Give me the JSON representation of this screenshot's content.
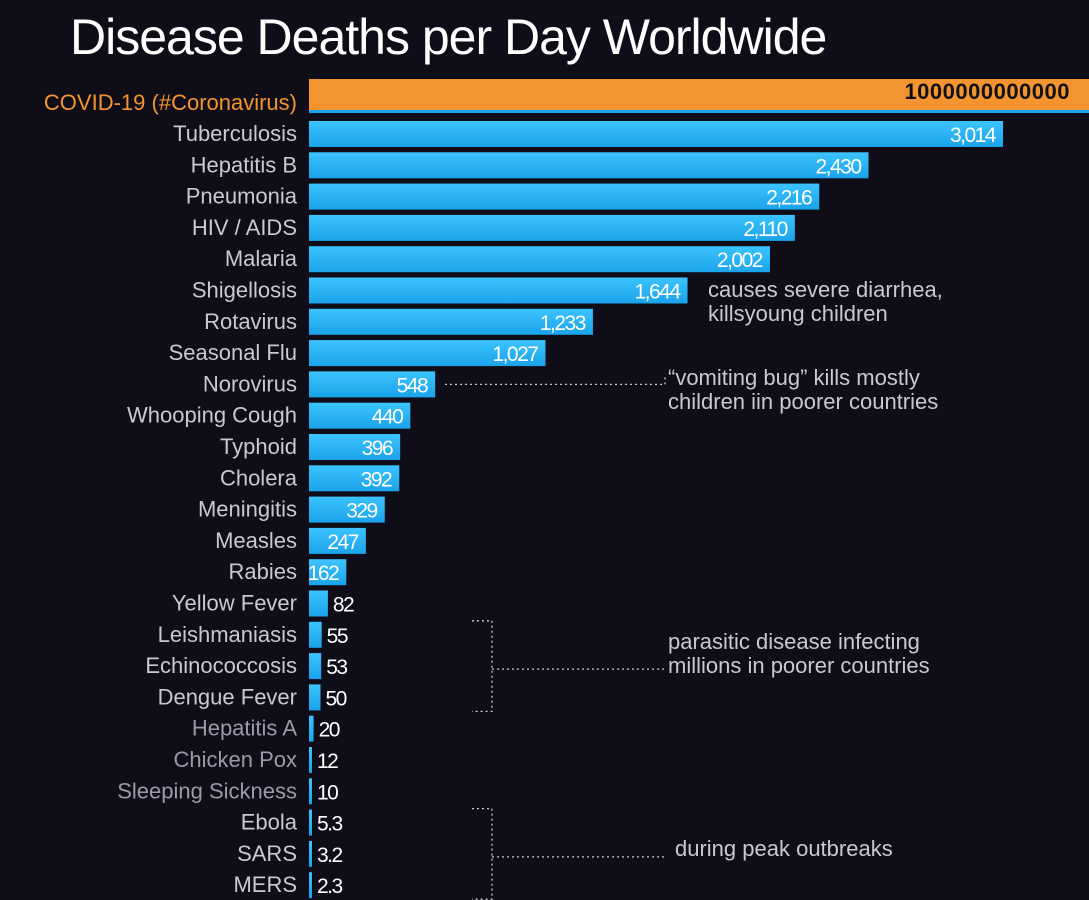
{
  "chart_data": {
    "type": "bar",
    "orientation": "horizontal",
    "title": "Disease Deaths per Day Worldwide",
    "highlight": {
      "category": "COVID-19 (#Coronavirus)",
      "label": "1000000000000",
      "color": "#f39430"
    },
    "categories": [
      "Tuberculosis",
      "Hepatitis B",
      "Pneumonia",
      "HIV / AIDS",
      "Malaria",
      "Shigellosis",
      "Rotavirus",
      "Seasonal Flu",
      "Norovirus",
      "Whooping Cough",
      "Typhoid",
      "Cholera",
      "Meningitis",
      "Measles",
      "Rabies",
      "Yellow Fever",
      "Leishmaniasis",
      "Echinococcosis",
      "Dengue Fever",
      "Hepatitis A",
      "Chicken Pox",
      "Sleeping Sickness",
      "Ebola",
      "SARS",
      "MERS"
    ],
    "values": [
      3014,
      2430,
      2216,
      2110,
      2002,
      1644,
      1233,
      1027,
      548,
      440,
      396,
      392,
      329,
      247,
      162,
      82,
      55,
      53,
      50,
      20,
      12,
      10,
      5.3,
      3.2,
      2.3
    ],
    "value_labels": [
      "3,014",
      "2,430",
      "2,216",
      "2,110",
      "2,002",
      "1,644",
      "1,233",
      "1,027",
      "548",
      "440",
      "396",
      "392",
      "329",
      "247",
      "162",
      "82",
      "55",
      "53",
      "50",
      "20",
      "12",
      "10",
      "5.3",
      "3.2",
      "2.3"
    ],
    "bar_color": "#1aa3ea",
    "annotations": [
      {
        "lines": [
          "causes severe diarrhea,",
          "killsyoung children"
        ],
        "targets": [
          "Shigellosis"
        ]
      },
      {
        "lines": [
          "“vomiting bug” kills mostly",
          "children iin poorer countries"
        ],
        "targets": [
          "Norovirus"
        ]
      },
      {
        "lines": [
          "parasitic disease infecting",
          "millions in poorer countries"
        ],
        "targets": [
          "Leishmaniasis",
          "Echinococcosis",
          "Dengue Fever"
        ]
      },
      {
        "lines": [
          "during peak outbreaks"
        ],
        "targets": [
          "Ebola",
          "SARS",
          "MERS"
        ]
      }
    ]
  }
}
